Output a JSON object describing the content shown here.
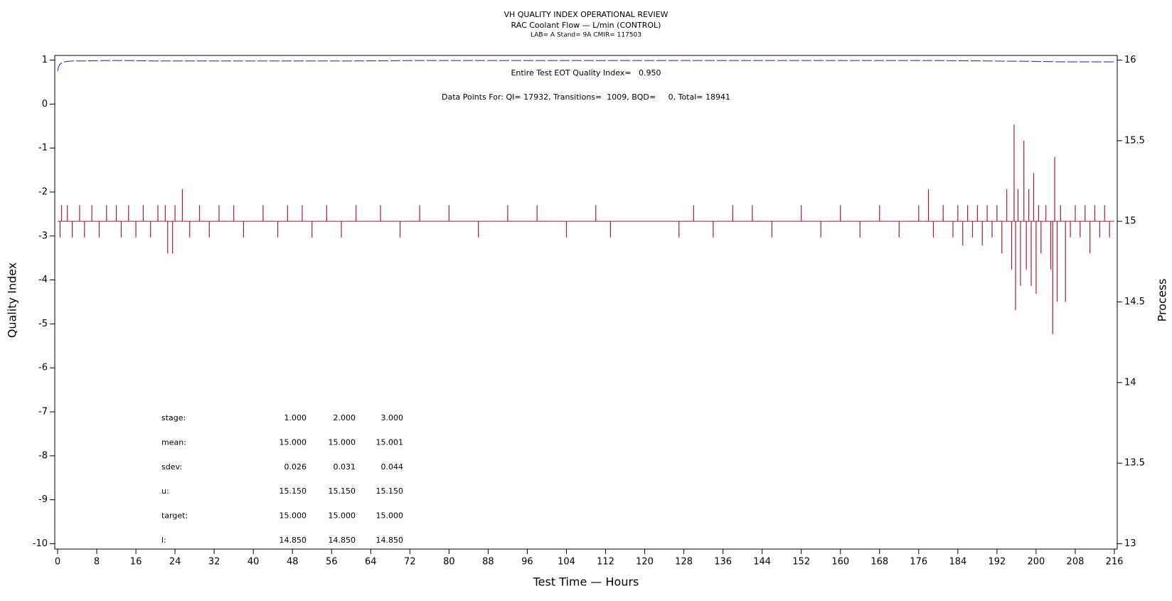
{
  "chart_data": {
    "type": "line",
    "title": "VH QUALITY INDEX OPERATIONAL REVIEW",
    "subtitle": "RAC Coolant Flow — L/min (CONTROL)",
    "subtitle2": "LAB= A Stand= 9A CMIR= 117503",
    "annotations": [
      "Entire Test EOT Quality Index=   0.950",
      "Data Points For: QI= 17932, Transitions=  1009, BQD=     0, Total= 18941"
    ],
    "x_label": "Test Time — Hours",
    "y_label": "Quality Index",
    "y2_label": "Process",
    "xlim": [
      0,
      216
    ],
    "xticks": [
      0,
      8,
      16,
      24,
      32,
      40,
      48,
      56,
      64,
      72,
      80,
      88,
      96,
      104,
      112,
      120,
      128,
      136,
      144,
      152,
      160,
      168,
      176,
      184,
      192,
      200,
      208,
      216
    ],
    "ylim": [
      -10,
      1
    ],
    "yticks": [
      -10,
      -9,
      -8,
      -7,
      -6,
      -5,
      -4,
      -3,
      -2,
      -1,
      0,
      1
    ],
    "y2lim": [
      13,
      16
    ],
    "y2ticks": [
      13,
      13.5,
      14,
      14.5,
      15,
      15.5,
      16
    ],
    "series": [
      {
        "color": "#1a1acc",
        "axis": "y",
        "x": [
          0,
          0.2,
          0.5,
          1,
          2,
          3,
          5,
          10,
          14,
          20,
          40,
          60,
          74,
          100,
          140,
          180,
          190,
          200,
          205,
          216
        ],
        "values": [
          0.75,
          0.85,
          0.91,
          0.95,
          0.97,
          0.98,
          0.98,
          0.99,
          0.99,
          0.98,
          0.98,
          0.98,
          0.99,
          0.99,
          0.99,
          0.99,
          0.98,
          0.97,
          0.96,
          0.96
        ]
      }
    ],
    "process": {
      "color": "#b0182e",
      "axis": "y2",
      "baseline": 15,
      "x": [
        0.5,
        0.8,
        2,
        3,
        4.5,
        5.5,
        7,
        8.5,
        10,
        12,
        13,
        14.5,
        16,
        17.5,
        19,
        20.5,
        22,
        22.5,
        23.5,
        24,
        25.5,
        27,
        29,
        31,
        33,
        36,
        38,
        42,
        45,
        47,
        50,
        52,
        55,
        58,
        61,
        66,
        70,
        74,
        80,
        86,
        92,
        98,
        104,
        110,
        113,
        127,
        130,
        134,
        138,
        142,
        146,
        152,
        156,
        160,
        164,
        168,
        172,
        176,
        178,
        179,
        181,
        183,
        184,
        185,
        186,
        187,
        188,
        189,
        190,
        191,
        192,
        193,
        194,
        195,
        195.5,
        195.8,
        196.3,
        196.8,
        197.5,
        198,
        198.5,
        199,
        199.5,
        200,
        200.5,
        201,
        202,
        203,
        203.4,
        203.8,
        204.3,
        205,
        206,
        207,
        208,
        209,
        210,
        211,
        212,
        213,
        214,
        215
      ],
      "values": [
        14.9,
        15.1,
        15.1,
        14.9,
        15.1,
        14.9,
        15.1,
        14.9,
        15.1,
        15.1,
        14.9,
        15.1,
        14.9,
        15.1,
        14.9,
        15.1,
        15.1,
        14.8,
        14.8,
        15.1,
        15.2,
        14.9,
        15.1,
        14.9,
        15.1,
        15.1,
        14.9,
        15.1,
        14.9,
        15.1,
        15.1,
        14.9,
        15.1,
        14.9,
        15.1,
        15.1,
        14.9,
        15.1,
        15.1,
        14.9,
        15.1,
        15.1,
        14.9,
        15.1,
        14.9,
        14.9,
        15.1,
        14.9,
        15.1,
        15.1,
        14.9,
        15.1,
        14.9,
        15.1,
        14.9,
        15.1,
        14.9,
        15.1,
        15.2,
        14.9,
        15.1,
        14.9,
        15.1,
        14.85,
        15.1,
        14.9,
        15.1,
        14.85,
        15.1,
        14.9,
        15.1,
        14.8,
        15.2,
        14.7,
        15.6,
        14.45,
        15.2,
        14.6,
        15.5,
        14.7,
        15.2,
        14.6,
        15.3,
        14.55,
        15.1,
        14.8,
        15.1,
        14.7,
        14.3,
        15.4,
        14.5,
        15.1,
        14.5,
        14.9,
        15.1,
        14.9,
        15.1,
        14.8,
        15.1,
        14.9,
        15.1,
        14.9
      ]
    },
    "stats": {
      "rows": [
        [
          "stage:",
          "1.000",
          "2.000",
          "3.000"
        ],
        [
          "mean:",
          "15.000",
          "15.000",
          "15.001"
        ],
        [
          "sdev:",
          "0.026",
          "0.031",
          "0.044"
        ],
        [
          "u:",
          "15.150",
          "15.150",
          "15.150"
        ],
        [
          "target:",
          "15.000",
          "15.000",
          "15.000"
        ],
        [
          "l:",
          "14.850",
          "14.850",
          "14.850"
        ]
      ]
    }
  }
}
